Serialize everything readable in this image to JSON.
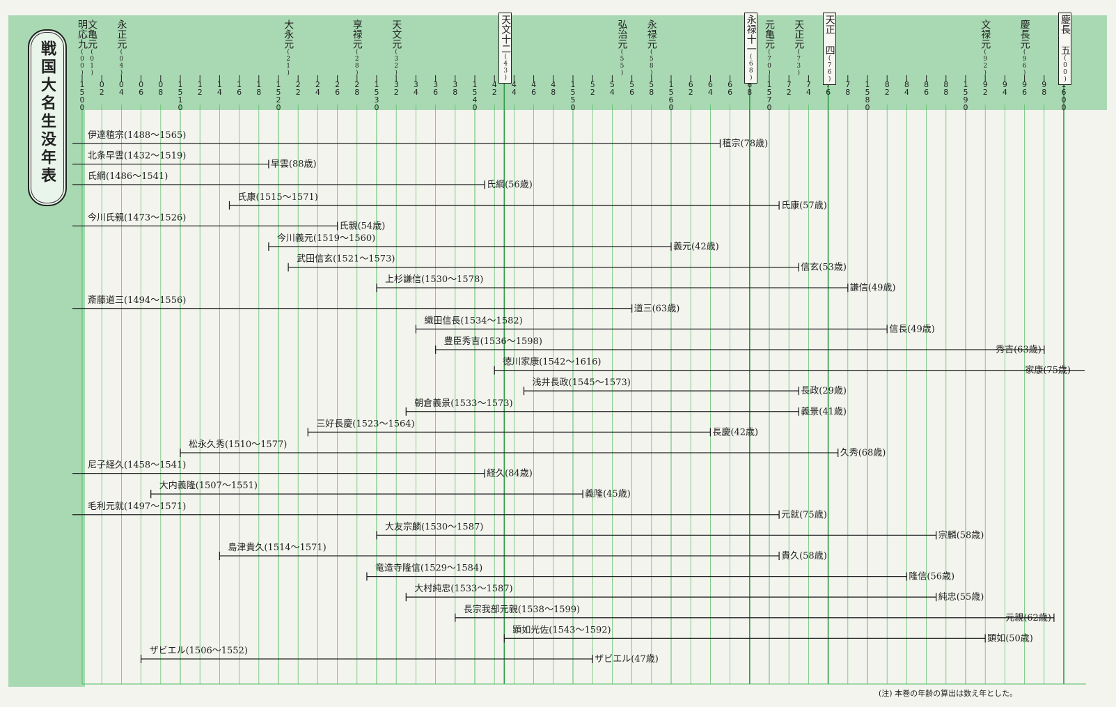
{
  "title": "戦国大名生没年表",
  "note": "(注) 本巻の年齢の算出は数え年とした。",
  "colors": {
    "band": "#a9d9b3",
    "grid": "#4dbb5e",
    "line": "#222222"
  },
  "eras": [
    {
      "year": 1500,
      "label": "明応九",
      "code": "(00)",
      "boxed": false
    },
    {
      "year": 1501,
      "label": "文亀元",
      "code": "(01)",
      "boxed": false
    },
    {
      "year": 1504,
      "label": "永正元",
      "code": "(04)",
      "boxed": false
    },
    {
      "year": 1521,
      "label": "大永元",
      "code": "(21)",
      "boxed": false
    },
    {
      "year": 1528,
      "label": "享禄元",
      "code": "(28)",
      "boxed": false
    },
    {
      "year": 1532,
      "label": "天文元",
      "code": "(32)",
      "boxed": false
    },
    {
      "year": 1543,
      "label": "天文十二",
      "code": "(43)",
      "boxed": true
    },
    {
      "year": 1555,
      "label": "弘治元",
      "code": "(55)",
      "boxed": false
    },
    {
      "year": 1558,
      "label": "永禄元",
      "code": "(58)",
      "boxed": false
    },
    {
      "year": 1568,
      "label": "永禄十一",
      "code": "(68)",
      "boxed": true
    },
    {
      "year": 1570,
      "label": "元亀元",
      "code": "(70)",
      "boxed": false
    },
    {
      "year": 1573,
      "label": "天正元",
      "code": "(73)",
      "boxed": false
    },
    {
      "year": 1576,
      "label": "天正 四",
      "code": "(76)",
      "boxed": true
    },
    {
      "year": 1592,
      "label": "文禄元",
      "code": "(92)",
      "boxed": false
    },
    {
      "year": 1596,
      "label": "慶長元",
      "code": "(96)",
      "boxed": false
    },
    {
      "year": 1600,
      "label": "慶長 五",
      "code": "(00)",
      "boxed": true
    }
  ],
  "chart_data": {
    "type": "gantt",
    "title": "戦国大名生没年表",
    "x_range": [
      1500,
      1600
    ],
    "x_ticks": [
      "1500",
      "02",
      "04",
      "06",
      "08",
      "1510",
      "12",
      "14",
      "16",
      "18",
      "1520",
      "22",
      "24",
      "26",
      "28",
      "1530",
      "32",
      "34",
      "36",
      "38",
      "1540",
      "42",
      "44",
      "46",
      "48",
      "1550",
      "52",
      "54",
      "56",
      "58",
      "1560",
      "62",
      "64",
      "66",
      "68",
      "1570",
      "72",
      "74",
      "76",
      "78",
      "1580",
      "82",
      "84",
      "86",
      "88",
      "1590",
      "92",
      "94",
      "96",
      "98",
      "1600"
    ],
    "series": [
      {
        "label": "伊達稙宗(1488～1565)",
        "start": 1488,
        "end": 1565,
        "end_label": "稙宗(78歳)"
      },
      {
        "label": "北条早雲(1432～1519)",
        "start": 1432,
        "end": 1519,
        "end_label": "早雲(88歳)"
      },
      {
        "label": "氏綱(1486～1541)",
        "start": 1486,
        "end": 1541,
        "end_label": "氏綱(56歳)"
      },
      {
        "label": "氏康(1515～1571)",
        "start": 1515,
        "end": 1571,
        "end_label": "氏康(57歳)"
      },
      {
        "label": "今川氏親(1473～1526)",
        "start": 1473,
        "end": 1526,
        "end_label": "氏親(54歳)"
      },
      {
        "label": "今川義元(1519～1560)",
        "start": 1519,
        "end": 1560,
        "end_label": "義元(42歳)"
      },
      {
        "label": "武田信玄(1521～1573)",
        "start": 1521,
        "end": 1573,
        "end_label": "信玄(53歳)"
      },
      {
        "label": "上杉謙信(1530～1578)",
        "start": 1530,
        "end": 1578,
        "end_label": "謙信(49歳)"
      },
      {
        "label": "斎藤道三(1494～1556)",
        "start": 1494,
        "end": 1556,
        "end_label": "道三(63歳)"
      },
      {
        "label": "織田信長(1534～1582)",
        "start": 1534,
        "end": 1582,
        "end_label": "信長(49歳)"
      },
      {
        "label": "豊臣秀吉(1536～1598)",
        "start": 1536,
        "end": 1598,
        "end_label": "秀吉(63歳)"
      },
      {
        "label": "徳川家康(1542～1616)",
        "start": 1542,
        "end": 1616,
        "end_label": "家康(75歳)"
      },
      {
        "label": "浅井長政(1545～1573)",
        "start": 1545,
        "end": 1573,
        "end_label": "長政(29歳)"
      },
      {
        "label": "朝倉義景(1533～1573)",
        "start": 1533,
        "end": 1573,
        "end_label": "義景(41歳)"
      },
      {
        "label": "三好長慶(1523～1564)",
        "start": 1523,
        "end": 1564,
        "end_label": "長慶(42歳)"
      },
      {
        "label": "松永久秀(1510～1577)",
        "start": 1510,
        "end": 1577,
        "end_label": "久秀(68歳)"
      },
      {
        "label": "尼子経久(1458～1541)",
        "start": 1458,
        "end": 1541,
        "end_label": "経久(84歳)"
      },
      {
        "label": "大内義隆(1507～1551)",
        "start": 1507,
        "end": 1551,
        "end_label": "義隆(45歳)"
      },
      {
        "label": "毛利元就(1497～1571)",
        "start": 1497,
        "end": 1571,
        "end_label": "元就(75歳)"
      },
      {
        "label": "大友宗麟(1530～1587)",
        "start": 1530,
        "end": 1587,
        "end_label": "宗麟(58歳)"
      },
      {
        "label": "島津貴久(1514～1571)",
        "start": 1514,
        "end": 1571,
        "end_label": "貴久(58歳)"
      },
      {
        "label": "竜造寺隆信(1529～1584)",
        "start": 1529,
        "end": 1584,
        "end_label": "隆信(56歳)"
      },
      {
        "label": "大村純忠(1533～1587)",
        "start": 1533,
        "end": 1587,
        "end_label": "純忠(55歳)"
      },
      {
        "label": "長宗我部元親(1538～1599)",
        "start": 1538,
        "end": 1599,
        "end_label": "元親(62歳)"
      },
      {
        "label": "顕如光佐(1543～1592)",
        "start": 1543,
        "end": 1592,
        "end_label": "顕如(50歳)"
      },
      {
        "label": "ザビエル(1506～1552)",
        "start": 1506,
        "end": 1552,
        "end_label": "ザビエル(47歳)"
      }
    ]
  }
}
